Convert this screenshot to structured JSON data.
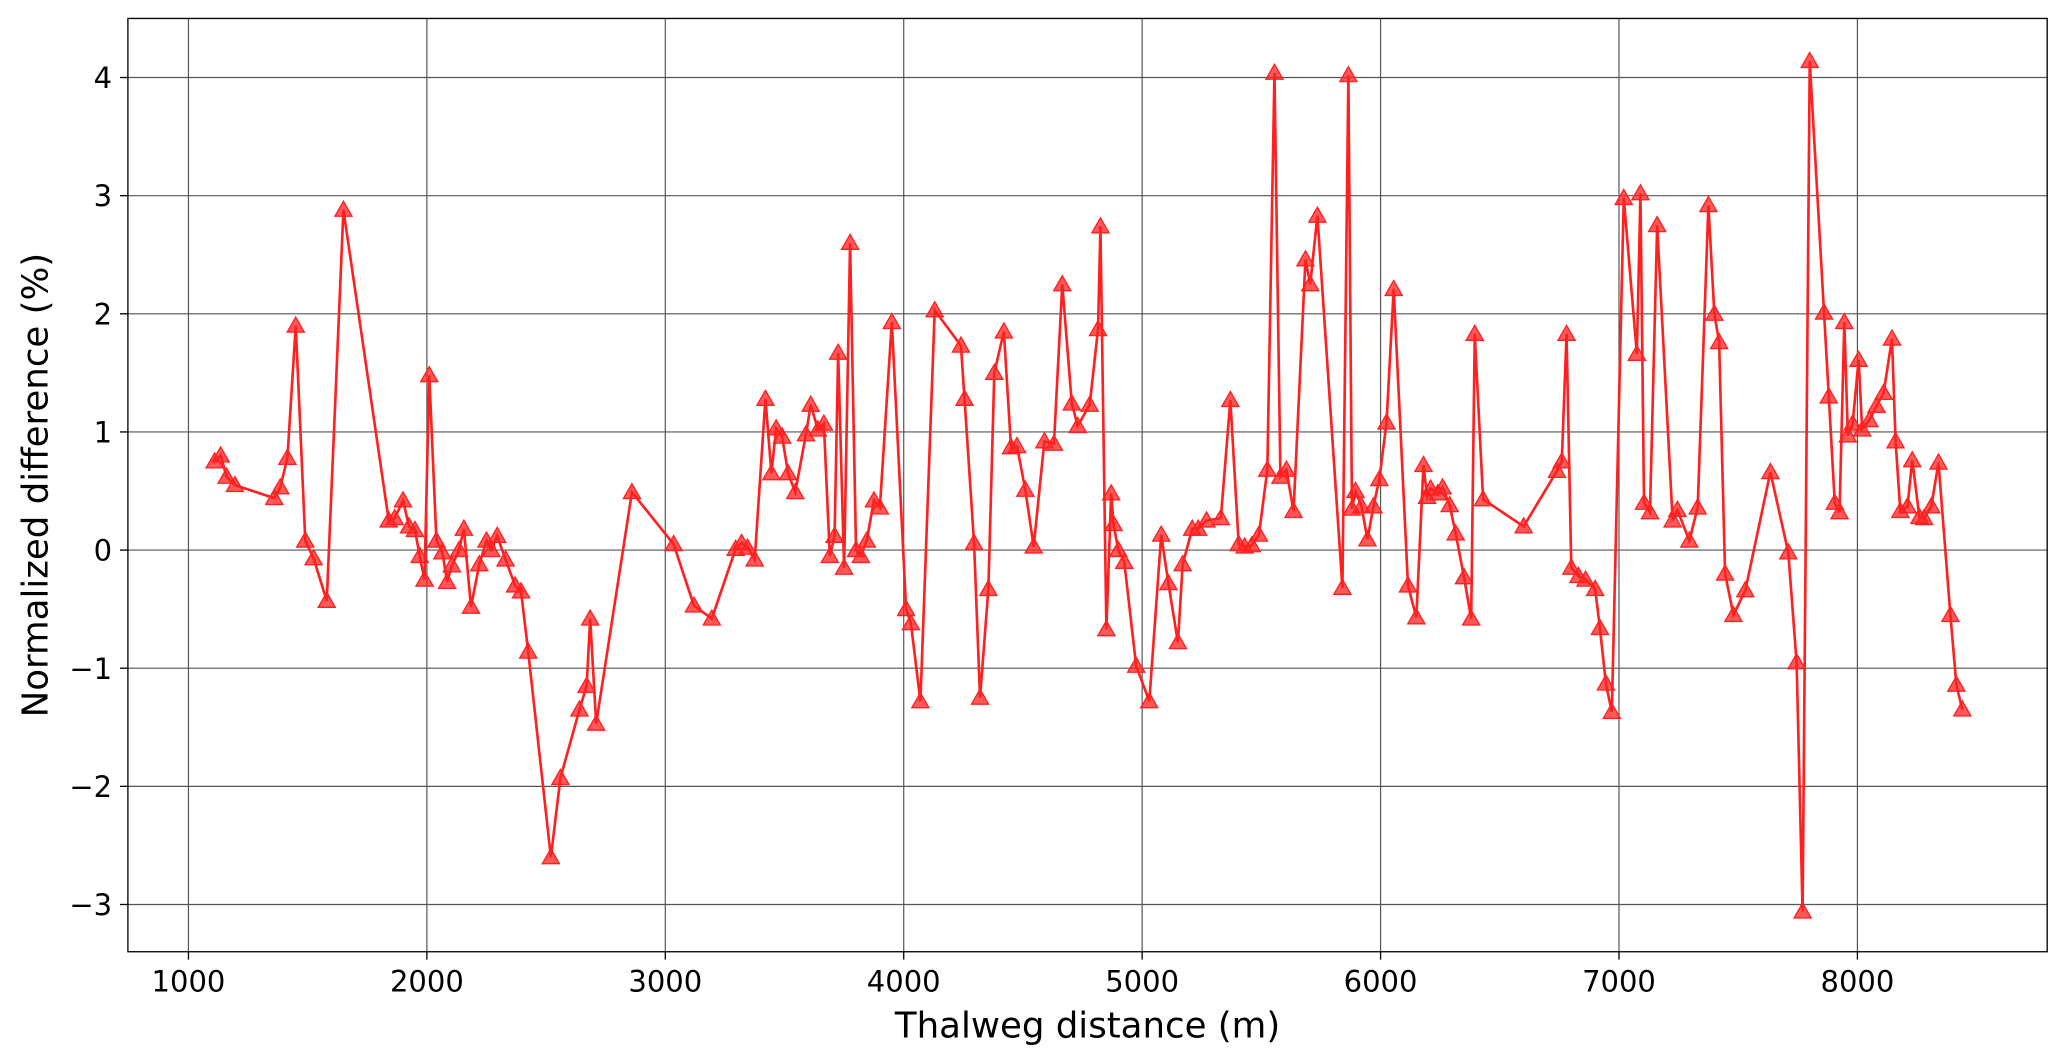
{
  "chart_data": {
    "type": "line",
    "x_label": "Thalweg distance (m)",
    "y_label": "Normalized difference (%)",
    "xlim": [
      746,
      8796
    ],
    "ylim": [
      -3.4,
      4.5
    ],
    "xticks": [
      1000,
      2000,
      3000,
      4000,
      5000,
      6000,
      7000,
      8000
    ],
    "yticks": [
      {
        "value": -3,
        "label": "−3"
      },
      {
        "value": -2,
        "label": "−2"
      },
      {
        "value": -1,
        "label": "−1"
      },
      0,
      1,
      2,
      3,
      4
    ],
    "grid": true,
    "series": [
      {
        "color": "#ff2020",
        "marker": "triangle",
        "x": [
          1110,
          1135,
          1160,
          1195,
          1360,
          1385,
          1415,
          1450,
          1490,
          1525,
          1580,
          1650,
          1840,
          1865,
          1900,
          1925,
          1950,
          1970,
          1990,
          2010,
          2040,
          2065,
          2085,
          2105,
          2135,
          2155,
          2185,
          2220,
          2250,
          2270,
          2295,
          2330,
          2370,
          2395,
          2425,
          2520,
          2560,
          2640,
          2670,
          2685,
          2710,
          2860,
          3035,
          3120,
          3195,
          3295,
          3320,
          3345,
          3375,
          3420,
          3445,
          3465,
          3490,
          3515,
          3545,
          3590,
          3610,
          3640,
          3665,
          3690,
          3710,
          3725,
          3750,
          3775,
          3800,
          3820,
          3845,
          3875,
          3900,
          3950,
          4010,
          4030,
          4070,
          4130,
          4240,
          4255,
          4295,
          4320,
          4355,
          4380,
          4420,
          4450,
          4475,
          4510,
          4545,
          4590,
          4630,
          4665,
          4705,
          4730,
          4780,
          4815,
          4825,
          4850,
          4870,
          4880,
          4900,
          4925,
          4975,
          5030,
          5080,
          5110,
          5150,
          5170,
          5210,
          5235,
          5270,
          5330,
          5370,
          5405,
          5430,
          5460,
          5490,
          5525,
          5555,
          5580,
          5605,
          5635,
          5685,
          5705,
          5735,
          5840,
          5865,
          5880,
          5895,
          5920,
          5945,
          5970,
          5995,
          6025,
          6055,
          6115,
          6150,
          6180,
          6195,
          6210,
          6240,
          6260,
          6290,
          6315,
          6350,
          6380,
          6395,
          6430,
          6600,
          6740,
          6760,
          6780,
          6800,
          6830,
          6860,
          6900,
          6920,
          6945,
          6970,
          7020,
          7075,
          7090,
          7105,
          7130,
          7160,
          7225,
          7245,
          7295,
          7330,
          7375,
          7400,
          7420,
          7445,
          7480,
          7530,
          7635,
          7710,
          7745,
          7770,
          7800,
          7860,
          7880,
          7905,
          7925,
          7945,
          7960,
          7980,
          8005,
          8020,
          8050,
          8080,
          8110,
          8145,
          8160,
          8180,
          8210,
          8230,
          8260,
          8280,
          8310,
          8340,
          8390,
          8415,
          8440
        ],
        "values": [
          0.75,
          0.8,
          0.62,
          0.55,
          0.44,
          0.53,
          0.78,
          1.9,
          0.08,
          -0.07,
          -0.43,
          2.88,
          0.25,
          0.27,
          0.42,
          0.2,
          0.17,
          -0.05,
          -0.25,
          1.48,
          0.08,
          -0.02,
          -0.27,
          -0.13,
          0.0,
          0.18,
          -0.48,
          -0.12,
          0.08,
          0.0,
          0.12,
          -0.08,
          -0.3,
          -0.35,
          -0.86,
          -2.6,
          -1.93,
          -1.35,
          -1.15,
          -0.58,
          -1.47,
          0.49,
          0.05,
          -0.47,
          -0.58,
          0.01,
          0.06,
          0.02,
          -0.08,
          1.28,
          0.65,
          1.03,
          0.96,
          0.65,
          0.49,
          0.98,
          1.23,
          1.02,
          1.07,
          -0.05,
          0.12,
          1.67,
          -0.15,
          2.6,
          0.0,
          -0.05,
          0.08,
          0.42,
          0.36,
          1.93,
          -0.5,
          -0.62,
          -1.28,
          2.03,
          1.73,
          1.28,
          0.06,
          -1.25,
          -0.33,
          1.5,
          1.85,
          0.87,
          0.88,
          0.51,
          0.03,
          0.92,
          0.9,
          2.25,
          1.24,
          1.05,
          1.23,
          1.87,
          2.74,
          -0.67,
          0.48,
          0.22,
          0.0,
          -0.1,
          -0.98,
          -1.28,
          0.13,
          -0.28,
          -0.78,
          -0.12,
          0.18,
          0.18,
          0.25,
          0.27,
          1.27,
          0.05,
          0.03,
          0.04,
          0.13,
          0.68,
          4.04,
          0.62,
          0.68,
          0.33,
          2.46,
          2.25,
          2.83,
          -0.32,
          4.02,
          0.35,
          0.5,
          0.37,
          0.09,
          0.37,
          0.6,
          1.08,
          2.21,
          -0.3,
          -0.57,
          0.72,
          0.45,
          0.52,
          0.48,
          0.53,
          0.38,
          0.14,
          -0.23,
          -0.58,
          1.83,
          0.43,
          0.2,
          0.67,
          0.75,
          1.83,
          -0.15,
          -0.22,
          -0.25,
          -0.33,
          -0.66,
          -1.13,
          -1.37,
          2.98,
          1.66,
          3.02,
          0.4,
          0.32,
          2.75,
          0.25,
          0.34,
          0.08,
          0.36,
          2.92,
          2.0,
          1.76,
          -0.2,
          -0.55,
          -0.34,
          0.66,
          -0.02,
          -0.95,
          -3.06,
          4.14,
          2.01,
          1.3,
          0.4,
          0.32,
          1.93,
          0.97,
          1.07,
          1.61,
          1.02,
          1.1,
          1.22,
          1.33,
          1.79,
          0.92,
          0.33,
          0.37,
          0.76,
          0.28,
          0.27,
          0.37,
          0.74,
          -0.55,
          -1.14,
          -1.35
        ]
      }
    ]
  }
}
